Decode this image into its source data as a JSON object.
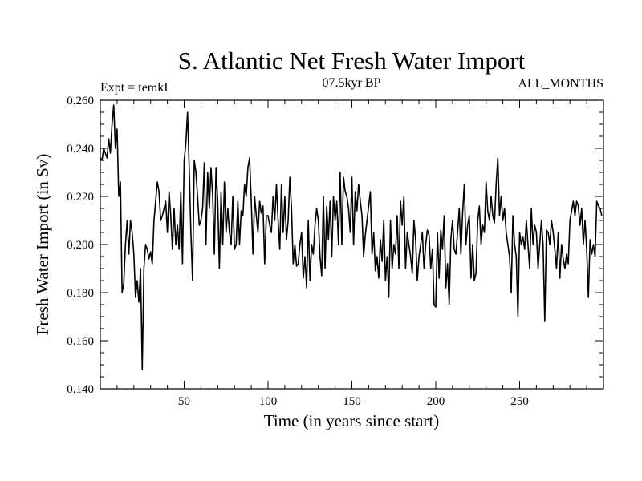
{
  "chart_data": {
    "type": "line",
    "title": "S. Atlantic Net Fresh Water Import",
    "subtitle": "07.5kyr BP",
    "left_label": "Expt = temkI",
    "right_label": "ALL_MONTHS",
    "xlabel": "Time (in years since start)",
    "ylabel": "Fresh Water Import (in Sv)",
    "xlim": [
      0,
      300
    ],
    "ylim": [
      0.14,
      0.26
    ],
    "x_ticks": [
      50,
      100,
      150,
      200,
      250
    ],
    "x_tick_labels": [
      "50",
      "100",
      "150",
      "200",
      "250"
    ],
    "y_ticks": [
      0.14,
      0.16,
      0.18,
      0.2,
      0.22,
      0.24,
      0.26
    ],
    "y_tick_labels": [
      "0.140",
      "0.160",
      "0.180",
      "0.200",
      "0.220",
      "0.240",
      "0.260"
    ],
    "grid": false,
    "series": [
      {
        "name": "Fresh Water Import",
        "color": "#000000",
        "x": [
          0,
          1,
          2,
          3,
          4,
          5,
          6,
          7,
          8,
          9,
          10,
          11,
          12,
          13,
          14,
          15,
          16,
          17,
          18,
          19,
          20,
          21,
          22,
          23,
          24,
          25,
          26,
          27,
          28,
          29,
          30,
          31,
          32,
          33,
          34,
          35,
          36,
          37,
          38,
          39,
          40,
          41,
          42,
          43,
          44,
          45,
          46,
          47,
          48,
          49,
          50,
          51,
          52,
          53,
          54,
          55,
          56,
          57,
          58,
          59,
          60,
          61,
          62,
          63,
          64,
          65,
          66,
          67,
          68,
          69,
          70,
          71,
          72,
          73,
          74,
          75,
          76,
          77,
          78,
          79,
          80,
          81,
          82,
          83,
          84,
          85,
          86,
          87,
          88,
          89,
          90,
          91,
          92,
          93,
          94,
          95,
          96,
          97,
          98,
          99,
          100,
          101,
          102,
          103,
          104,
          105,
          106,
          107,
          108,
          109,
          110,
          111,
          112,
          113,
          114,
          115,
          116,
          117,
          118,
          119,
          120,
          121,
          122,
          123,
          124,
          125,
          126,
          127,
          128,
          129,
          130,
          131,
          132,
          133,
          134,
          135,
          136,
          137,
          138,
          139,
          140,
          141,
          142,
          143,
          144,
          145,
          146,
          147,
          148,
          149,
          150,
          151,
          152,
          153,
          154,
          155,
          156,
          157,
          158,
          159,
          160,
          161,
          162,
          163,
          164,
          165,
          166,
          167,
          168,
          169,
          170,
          171,
          172,
          173,
          174,
          175,
          176,
          177,
          178,
          179,
          180,
          181,
          182,
          183,
          184,
          185,
          186,
          187,
          188,
          189,
          190,
          191,
          192,
          193,
          194,
          195,
          196,
          197,
          198,
          199,
          200,
          201,
          202,
          203,
          204,
          205,
          206,
          207,
          208,
          209,
          210,
          211,
          212,
          213,
          214,
          215,
          216,
          217,
          218,
          219,
          220,
          221,
          222,
          223,
          224,
          225,
          226,
          227,
          228,
          229,
          230,
          231,
          232,
          233,
          234,
          235,
          236,
          237,
          238,
          239,
          240,
          241,
          242,
          243,
          244,
          245,
          246,
          247,
          248,
          249,
          250,
          251,
          252,
          253,
          254,
          255,
          256,
          257,
          258,
          259,
          260,
          261,
          262,
          263,
          264,
          265,
          266,
          267,
          268,
          269,
          270,
          271,
          272,
          273,
          274,
          275,
          276,
          277,
          278,
          279,
          280,
          281,
          282,
          283,
          284,
          285,
          286,
          287,
          288,
          289,
          290,
          291,
          292,
          293,
          294,
          295,
          296,
          297,
          298,
          299
        ],
        "y": [
          0.236,
          0.235,
          0.24,
          0.238,
          0.236,
          0.244,
          0.238,
          0.25,
          0.258,
          0.24,
          0.248,
          0.22,
          0.226,
          0.18,
          0.184,
          0.2,
          0.21,
          0.196,
          0.21,
          0.205,
          0.196,
          0.178,
          0.185,
          0.176,
          0.19,
          0.148,
          0.19,
          0.2,
          0.198,
          0.194,
          0.197,
          0.192,
          0.21,
          0.218,
          0.226,
          0.222,
          0.21,
          0.212,
          0.215,
          0.218,
          0.205,
          0.222,
          0.212,
          0.198,
          0.215,
          0.2,
          0.208,
          0.198,
          0.222,
          0.192,
          0.235,
          0.242,
          0.255,
          0.232,
          0.205,
          0.185,
          0.235,
          0.23,
          0.22,
          0.208,
          0.21,
          0.215,
          0.234,
          0.2,
          0.23,
          0.215,
          0.232,
          0.22,
          0.196,
          0.232,
          0.218,
          0.19,
          0.222,
          0.2,
          0.226,
          0.205,
          0.215,
          0.205,
          0.2,
          0.22,
          0.198,
          0.2,
          0.218,
          0.2,
          0.214,
          0.212,
          0.225,
          0.22,
          0.232,
          0.236,
          0.218,
          0.196,
          0.22,
          0.212,
          0.205,
          0.218,
          0.213,
          0.216,
          0.192,
          0.212,
          0.212,
          0.208,
          0.205,
          0.22,
          0.21,
          0.225,
          0.21,
          0.198,
          0.225,
          0.205,
          0.22,
          0.202,
          0.21,
          0.228,
          0.215,
          0.192,
          0.2,
          0.191,
          0.192,
          0.2,
          0.205,
          0.186,
          0.195,
          0.182,
          0.21,
          0.185,
          0.2,
          0.196,
          0.208,
          0.215,
          0.21,
          0.195,
          0.187,
          0.22,
          0.19,
          0.216,
          0.202,
          0.218,
          0.195,
          0.22,
          0.21,
          0.218,
          0.2,
          0.23,
          0.2,
          0.228,
          0.222,
          0.22,
          0.215,
          0.205,
          0.228,
          0.2,
          0.222,
          0.214,
          0.225,
          0.218,
          0.212,
          0.195,
          0.204,
          0.21,
          0.216,
          0.222,
          0.196,
          0.205,
          0.189,
          0.195,
          0.186,
          0.202,
          0.193,
          0.21,
          0.185,
          0.195,
          0.178,
          0.21,
          0.19,
          0.2,
          0.196,
          0.212,
          0.19,
          0.218,
          0.208,
          0.22,
          0.19,
          0.205,
          0.2,
          0.195,
          0.188,
          0.21,
          0.202,
          0.185,
          0.195,
          0.2,
          0.205,
          0.19,
          0.2,
          0.206,
          0.204,
          0.19,
          0.198,
          0.175,
          0.174,
          0.205,
          0.186,
          0.206,
          0.198,
          0.212,
          0.182,
          0.192,
          0.175,
          0.202,
          0.21,
          0.198,
          0.196,
          0.205,
          0.215,
          0.196,
          0.213,
          0.225,
          0.2,
          0.208,
          0.212,
          0.186,
          0.2,
          0.185,
          0.188,
          0.21,
          0.216,
          0.2,
          0.208,
          0.205,
          0.226,
          0.214,
          0.21,
          0.22,
          0.212,
          0.209,
          0.225,
          0.236,
          0.212,
          0.22,
          0.21,
          0.215,
          0.205,
          0.2,
          0.195,
          0.18,
          0.212,
          0.2,
          0.195,
          0.17,
          0.205,
          0.2,
          0.203,
          0.198,
          0.21,
          0.2,
          0.19,
          0.215,
          0.2,
          0.208,
          0.205,
          0.19,
          0.2,
          0.21,
          0.2,
          0.168,
          0.206,
          0.205,
          0.2,
          0.21,
          0.205,
          0.198,
          0.19,
          0.205,
          0.186,
          0.2,
          0.194,
          0.19,
          0.196,
          0.192,
          0.21,
          0.214,
          0.218,
          0.212,
          0.218,
          0.216,
          0.208,
          0.215,
          0.2,
          0.21,
          0.198,
          0.178,
          0.202,
          0.196,
          0.2,
          0.195,
          0.218,
          0.216,
          0.215,
          0.212
        ]
      }
    ]
  }
}
